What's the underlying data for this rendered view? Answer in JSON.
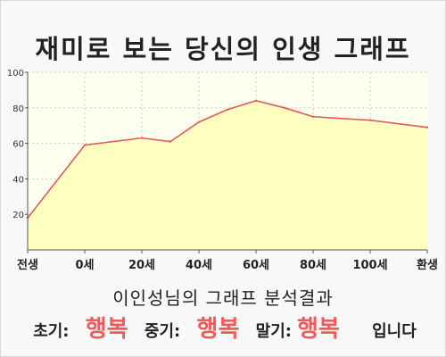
{
  "title": "재미로 보는 당신의 인생 그래프",
  "chart_data": {
    "type": "area",
    "x_labels": [
      "전생",
      "0세",
      "20세",
      "40세",
      "60세",
      "80세",
      "100세",
      "환생"
    ],
    "x": [
      -20,
      0,
      20,
      40,
      60,
      80,
      100,
      120
    ],
    "points": [
      {
        "x": -20,
        "y": 18
      },
      {
        "x": 0,
        "y": 59
      },
      {
        "x": 20,
        "y": 63
      },
      {
        "x": 30,
        "y": 61
      },
      {
        "x": 40,
        "y": 72
      },
      {
        "x": 50,
        "y": 79
      },
      {
        "x": 60,
        "y": 84
      },
      {
        "x": 70,
        "y": 80
      },
      {
        "x": 80,
        "y": 75
      },
      {
        "x": 100,
        "y": 73
      },
      {
        "x": 120,
        "y": 69
      }
    ],
    "ylim": [
      0,
      100
    ],
    "yticks": [
      20,
      40,
      60,
      80,
      100
    ],
    "grid": true,
    "colors": {
      "fill": "#ffffc0",
      "line": "#e05a5a",
      "bg": "#fffff0"
    }
  },
  "result": {
    "title": "이인성님의 그래프 분석결과",
    "early_label": "초기:",
    "early_value": "행복",
    "mid_label": "중기:",
    "mid_value": "행복",
    "late_label": "말기:",
    "late_value": "행복",
    "ending": "입니다"
  }
}
